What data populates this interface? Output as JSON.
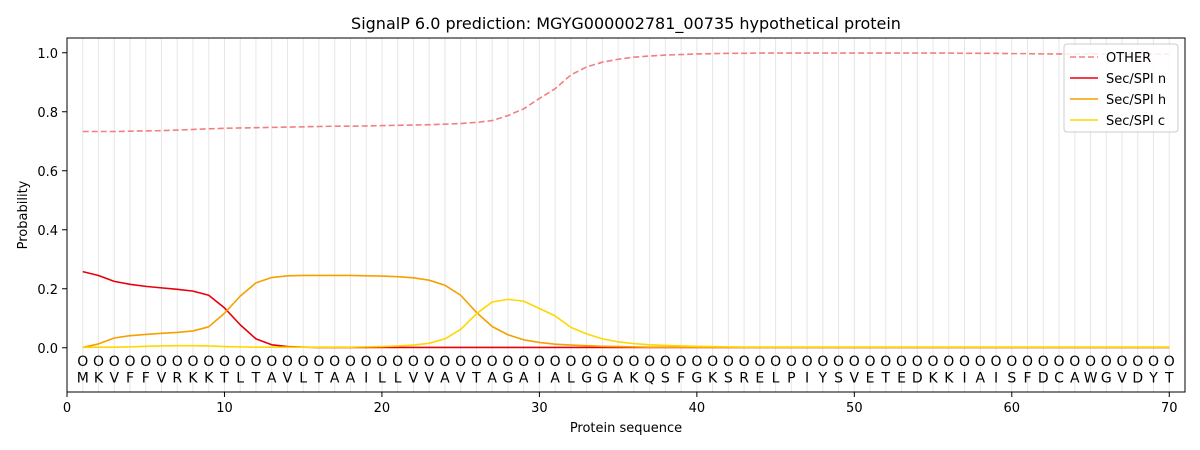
{
  "chart_data": {
    "type": "line",
    "title": "SignalP 6.0 prediction: MGYG000002781_00735 hypothetical protein",
    "xlabel": "Protein sequence",
    "ylabel": "Probability",
    "xlim": [
      0,
      71
    ],
    "ylim": [
      -0.15,
      1.05
    ],
    "x_ticks": [
      0,
      10,
      20,
      30,
      40,
      50,
      60,
      70
    ],
    "y_ticks": [
      0.0,
      0.2,
      0.4,
      0.6,
      0.8,
      1.0
    ],
    "x_tick_labels": [
      "0",
      "10",
      "20",
      "30",
      "40",
      "50",
      "60",
      "70"
    ],
    "y_tick_labels": [
      "0.0",
      "0.2",
      "0.4",
      "0.6",
      "0.8",
      "1.0"
    ],
    "grid": "vertical lines at each residue",
    "legend_position": "top-right",
    "sequence": [
      "M",
      "K",
      "V",
      "F",
      "F",
      "V",
      "R",
      "K",
      "K",
      "T",
      "L",
      "T",
      "A",
      "V",
      "L",
      "T",
      "A",
      "A",
      "I",
      "L",
      "L",
      "V",
      "V",
      "A",
      "V",
      "T",
      "A",
      "G",
      "A",
      "I",
      "A",
      "L",
      "G",
      "G",
      "A",
      "K",
      "Q",
      "S",
      "F",
      "G",
      "K",
      "S",
      "R",
      "E",
      "L",
      "P",
      "I",
      "Y",
      "S",
      "V",
      "E",
      "T",
      "E",
      "D",
      "K",
      "K",
      "I",
      "A",
      "I",
      "S",
      "F",
      "D",
      "C",
      "A",
      "W",
      "G",
      "V",
      "D",
      "Y",
      "T"
    ],
    "residue_marker": "O",
    "series": [
      {
        "name": "OTHER",
        "color": "#f08080",
        "style": "dashed",
        "values": [
          0.733,
          0.733,
          0.733,
          0.734,
          0.735,
          0.736,
          0.738,
          0.74,
          0.742,
          0.744,
          0.745,
          0.746,
          0.747,
          0.748,
          0.749,
          0.75,
          0.751,
          0.751,
          0.752,
          0.753,
          0.754,
          0.755,
          0.756,
          0.758,
          0.76,
          0.764,
          0.77,
          0.787,
          0.81,
          0.845,
          0.878,
          0.925,
          0.952,
          0.968,
          0.978,
          0.985,
          0.989,
          0.992,
          0.994,
          0.996,
          0.997,
          0.998,
          0.998,
          0.999,
          0.999,
          0.999,
          0.999,
          0.999,
          0.999,
          0.999,
          0.999,
          0.999,
          0.999,
          0.999,
          0.999,
          0.999,
          0.998,
          0.998,
          0.998,
          0.997,
          0.997,
          0.996,
          0.996,
          0.996,
          0.996,
          0.996,
          0.996,
          0.996,
          0.996,
          0.996
        ]
      },
      {
        "name": "Sec/SPI n",
        "color": "#e8000b",
        "style": "solid",
        "values": [
          0.258,
          0.245,
          0.225,
          0.215,
          0.208,
          0.203,
          0.198,
          0.192,
          0.178,
          0.135,
          0.078,
          0.03,
          0.01,
          0.004,
          0.002,
          0.001,
          0.001,
          0.001,
          0.001,
          0.001,
          0.001,
          0.001,
          0.001,
          0.001,
          0.001,
          0.001,
          0.001,
          0.001,
          0.001,
          0.001,
          0.001,
          0.001,
          0.001,
          0.001,
          0.001,
          0.001,
          0.001,
          0.001,
          0.001,
          0.001,
          0.001,
          0.001,
          0.001,
          0.001,
          0.001,
          0.001,
          0.001,
          0.001,
          0.001,
          0.001,
          0.001,
          0.001,
          0.001,
          0.001,
          0.001,
          0.001,
          0.001,
          0.001,
          0.001,
          0.001,
          0.001,
          0.001,
          0.001,
          0.001,
          0.001,
          0.001,
          0.001,
          0.001,
          0.001,
          0.001
        ]
      },
      {
        "name": "Sec/SPI h",
        "color": "#f5a000",
        "style": "solid",
        "values": [
          0.001,
          0.013,
          0.033,
          0.041,
          0.045,
          0.049,
          0.052,
          0.057,
          0.071,
          0.117,
          0.175,
          0.22,
          0.238,
          0.244,
          0.245,
          0.245,
          0.245,
          0.245,
          0.244,
          0.243,
          0.241,
          0.237,
          0.229,
          0.212,
          0.178,
          0.12,
          0.072,
          0.044,
          0.027,
          0.018,
          0.012,
          0.009,
          0.007,
          0.005,
          0.004,
          0.003,
          0.002,
          0.002,
          0.002,
          0.002,
          0.002,
          0.002,
          0.002,
          0.002,
          0.002,
          0.002,
          0.002,
          0.002,
          0.002,
          0.002,
          0.002,
          0.002,
          0.002,
          0.002,
          0.002,
          0.002,
          0.002,
          0.002,
          0.002,
          0.002,
          0.002,
          0.002,
          0.002,
          0.002,
          0.002,
          0.002,
          0.002,
          0.002,
          0.002,
          0.002
        ]
      },
      {
        "name": "Sec/SPI c",
        "color": "#ffd700",
        "style": "solid",
        "values": [
          0.001,
          0.002,
          0.002,
          0.003,
          0.005,
          0.006,
          0.007,
          0.007,
          0.006,
          0.004,
          0.003,
          0.002,
          0.002,
          0.002,
          0.002,
          0.002,
          0.002,
          0.002,
          0.003,
          0.004,
          0.006,
          0.009,
          0.015,
          0.03,
          0.062,
          0.115,
          0.155,
          0.164,
          0.158,
          0.133,
          0.108,
          0.069,
          0.047,
          0.03,
          0.02,
          0.014,
          0.01,
          0.008,
          0.006,
          0.005,
          0.004,
          0.003,
          0.002,
          0.002,
          0.002,
          0.002,
          0.002,
          0.002,
          0.002,
          0.002,
          0.002,
          0.002,
          0.002,
          0.002,
          0.002,
          0.002,
          0.002,
          0.002,
          0.002,
          0.002,
          0.002,
          0.002,
          0.002,
          0.002,
          0.002,
          0.002,
          0.002,
          0.002,
          0.002,
          0.002
        ]
      }
    ]
  }
}
